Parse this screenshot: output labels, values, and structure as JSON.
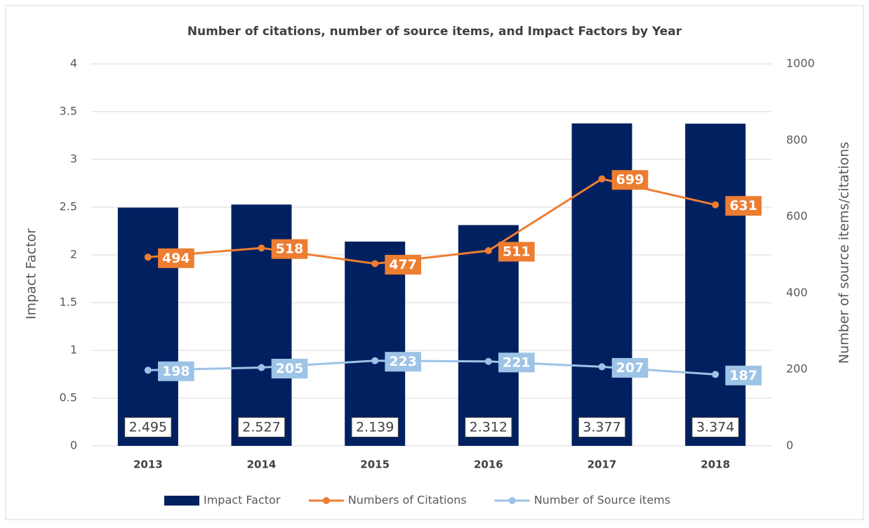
{
  "chart_data": {
    "type": "bar",
    "title": "Number of citations, number of source items, and Impact Factors by Year",
    "ylabel": "Impact Factor",
    "y2label": "Number of source items/citations",
    "categories": [
      "2013",
      "2014",
      "2015",
      "2016",
      "2017",
      "2018"
    ],
    "series": [
      {
        "name": "Impact Factor",
        "type": "bar",
        "color": "#002060",
        "values": [
          2.495,
          2.527,
          2.139,
          2.312,
          3.377,
          3.374
        ]
      },
      {
        "name": "Numbers of Citations",
        "type": "line",
        "axis": "y2",
        "color": "#ED7D31",
        "values": [
          494,
          518,
          477,
          511,
          699,
          631
        ]
      },
      {
        "name": "Number of Source items",
        "type": "line",
        "axis": "y2",
        "color": "#9DC3E6",
        "values": [
          198,
          205,
          223,
          221,
          207,
          187
        ]
      }
    ],
    "ylim": [
      0,
      4
    ],
    "yticks": [
      0,
      0.5,
      1,
      1.5,
      2,
      2.5,
      3,
      3.5,
      4
    ],
    "y2lim": [
      0,
      1000
    ],
    "y2ticks": [
      0,
      200,
      400,
      600,
      800,
      1000
    ],
    "grid": true,
    "legend": "bottom"
  }
}
